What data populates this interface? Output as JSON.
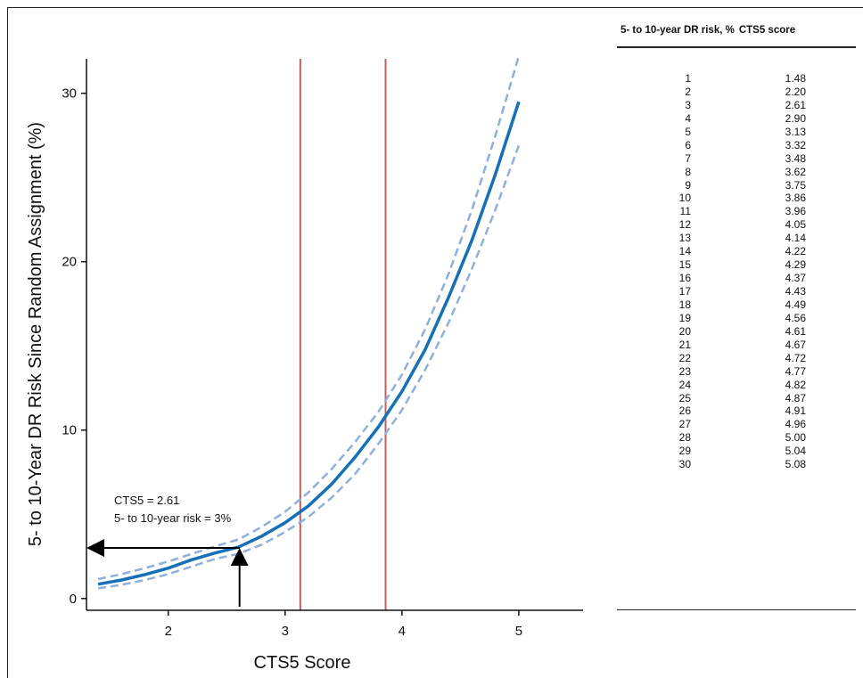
{
  "chart_data": {
    "type": "line",
    "xlabel": "CTS5 Score",
    "ylabel": "5- to 10-Year DR Risk Since Random Assignment (%)",
    "xlim": [
      1.3,
      5.55
    ],
    "ylim": [
      -0.7,
      33.0
    ],
    "x_ticks": [
      "2",
      "3",
      "4",
      "5"
    ],
    "y_ticks": [
      "0",
      "10",
      "20",
      "30"
    ],
    "grid": false,
    "series": [
      {
        "style": "solid",
        "color": "#1570b8",
        "x": [
          1.4,
          1.6,
          1.8,
          2.0,
          2.2,
          2.4,
          2.6,
          2.8,
          3.0,
          3.2,
          3.4,
          3.6,
          3.8,
          4.0,
          4.2,
          4.4,
          4.6,
          4.8,
          5.0
        ],
        "y": [
          0.85,
          1.1,
          1.42,
          1.8,
          2.3,
          2.7,
          3.05,
          3.7,
          4.5,
          5.5,
          6.8,
          8.4,
          10.2,
          12.3,
          14.8,
          17.9,
          21.3,
          25.2,
          29.5
        ]
      },
      {
        "style": "dashed",
        "color": "#8fb0dd",
        "x": [
          1.4,
          1.6,
          1.8,
          2.0,
          2.2,
          2.4,
          2.6,
          2.8,
          3.0,
          3.2,
          3.4,
          3.6,
          3.8,
          4.0,
          4.2,
          4.4,
          4.6,
          4.8,
          5.0
        ],
        "y": [
          1.15,
          1.45,
          1.8,
          2.2,
          2.65,
          3.1,
          3.5,
          4.25,
          5.15,
          6.3,
          7.7,
          9.3,
          11.1,
          13.3,
          16.0,
          19.3,
          23.1,
          27.5,
          32.2
        ]
      },
      {
        "style": "dashed",
        "color": "#8fb0dd",
        "x": [
          1.4,
          1.6,
          1.8,
          2.0,
          2.2,
          2.4,
          2.6,
          2.8,
          3.0,
          3.2,
          3.4,
          3.6,
          3.8,
          4.0,
          4.2,
          4.4,
          4.6,
          4.8,
          5.0
        ],
        "y": [
          0.6,
          0.82,
          1.1,
          1.45,
          1.9,
          2.35,
          2.65,
          3.2,
          3.95,
          4.85,
          6.0,
          7.4,
          9.2,
          11.2,
          13.6,
          16.4,
          19.6,
          23.1,
          26.9
        ]
      }
    ],
    "vlines": [
      {
        "x": 3.13,
        "color": "#c0605f"
      },
      {
        "x": 3.86,
        "color": "#c0605f"
      }
    ],
    "annotation": {
      "lines": [
        "CTS5 = 2.61",
        "5- to 10-year risk = 3%"
      ],
      "x": 2.61,
      "y": 3
    },
    "table": {
      "headers": [
        "5- to 10-year DR risk, %",
        "CTS5 score"
      ],
      "rows": [
        [
          "1",
          "1.48"
        ],
        [
          "2",
          "2.20"
        ],
        [
          "3",
          "2.61"
        ],
        [
          "4",
          "2.90"
        ],
        [
          "5",
          "3.13"
        ],
        [
          "6",
          "3.32"
        ],
        [
          "7",
          "3.48"
        ],
        [
          "8",
          "3.62"
        ],
        [
          "9",
          "3.75"
        ],
        [
          "10",
          "3.86"
        ],
        [
          "11",
          "3.96"
        ],
        [
          "12",
          "4.05"
        ],
        [
          "13",
          "4.14"
        ],
        [
          "14",
          "4.22"
        ],
        [
          "15",
          "4.29"
        ],
        [
          "16",
          "4.37"
        ],
        [
          "17",
          "4.43"
        ],
        [
          "18",
          "4.49"
        ],
        [
          "19",
          "4.56"
        ],
        [
          "20",
          "4.61"
        ],
        [
          "21",
          "4.67"
        ],
        [
          "22",
          "4.72"
        ],
        [
          "23",
          "4.77"
        ],
        [
          "24",
          "4.82"
        ],
        [
          "25",
          "4.87"
        ],
        [
          "26",
          "4.91"
        ],
        [
          "27",
          "4.96"
        ],
        [
          "28",
          "5.00"
        ],
        [
          "29",
          "5.04"
        ],
        [
          "30",
          "5.08"
        ]
      ]
    }
  }
}
